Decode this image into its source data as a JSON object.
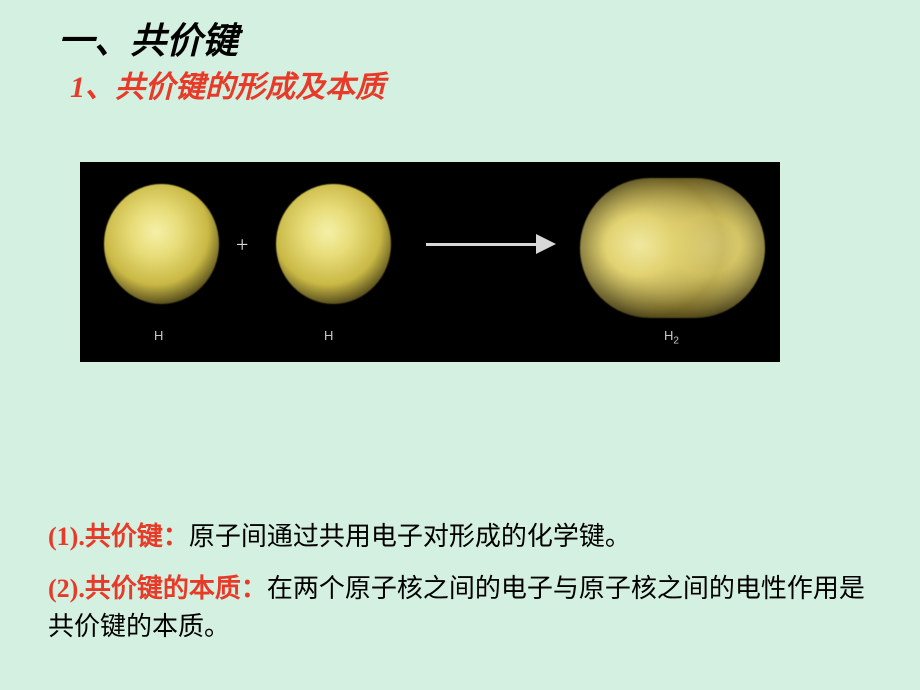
{
  "heading1": "一、共价键",
  "heading2": "1、共价键的形成及本质",
  "diagram": {
    "plus": "+",
    "label_H_left": "H",
    "label_H_mid": "H",
    "label_H2": "H",
    "label_H2_sub": "2",
    "atom_color_inner": "#f5f0a8",
    "atom_color_outer": "#c9b845",
    "background": "#000000",
    "arrow_color": "#d8d8d8"
  },
  "para1_lead": "(1).共价键：",
  "para1_body": "原子间通过共用电子对形成的化学键。",
  "para2_lead": "(2).共价键的本质：",
  "para2_body": "在两个原子核之间的电子与原子核之间的电性作用是共价键的本质。",
  "colors": {
    "page_bg": "#d4f0e0",
    "heading_red": "#e83a28",
    "text_black": "#000000"
  }
}
